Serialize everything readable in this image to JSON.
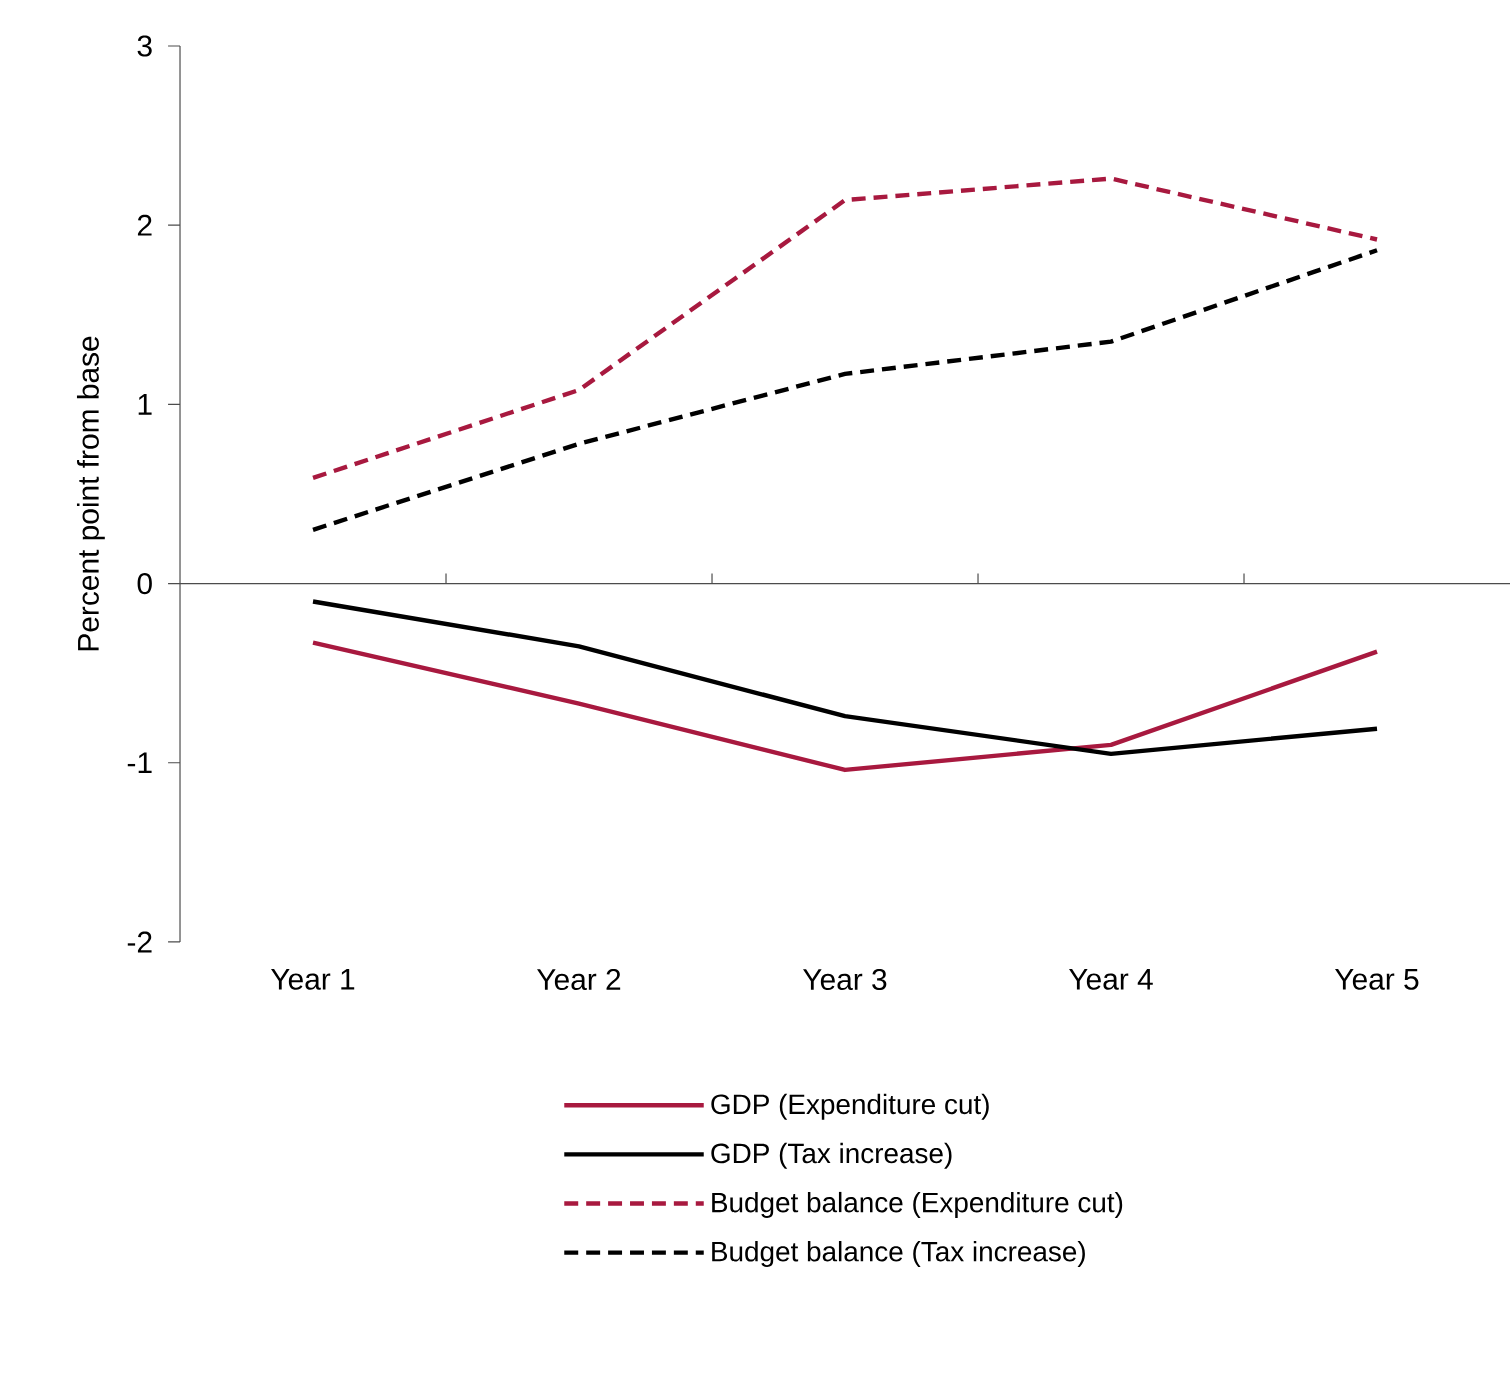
{
  "chart_data": {
    "type": "line",
    "ylabel": "Percent point from base",
    "categories": [
      "Year 1",
      "Year 2",
      "Year 3",
      "Year 4",
      "Year 5"
    ],
    "series": [
      {
        "name": "GDP (Expenditure cut)",
        "color": "#a8193f",
        "line_style": "solid",
        "values": [
          -0.33,
          -0.67,
          -1.04,
          -0.9,
          -0.38
        ]
      },
      {
        "name": "GDP (Tax increase)",
        "color": "#000000",
        "line_style": "solid",
        "values": [
          -0.1,
          -0.35,
          -0.74,
          -0.95,
          -0.81
        ]
      },
      {
        "name": "Budget balance (Expenditure cut)",
        "color": "#a8193f",
        "line_style": "dashed",
        "values": [
          0.59,
          1.08,
          2.14,
          2.26,
          1.92
        ]
      },
      {
        "name": "Budget balance (Tax increase)",
        "color": "#000000",
        "line_style": "dashed",
        "values": [
          0.3,
          0.78,
          1.17,
          1.35,
          1.86
        ]
      }
    ],
    "ylim": [
      -2,
      3
    ],
    "yticks": [
      -2,
      -1,
      0,
      1,
      2,
      3
    ],
    "legend": "bottom",
    "marker": "none"
  }
}
